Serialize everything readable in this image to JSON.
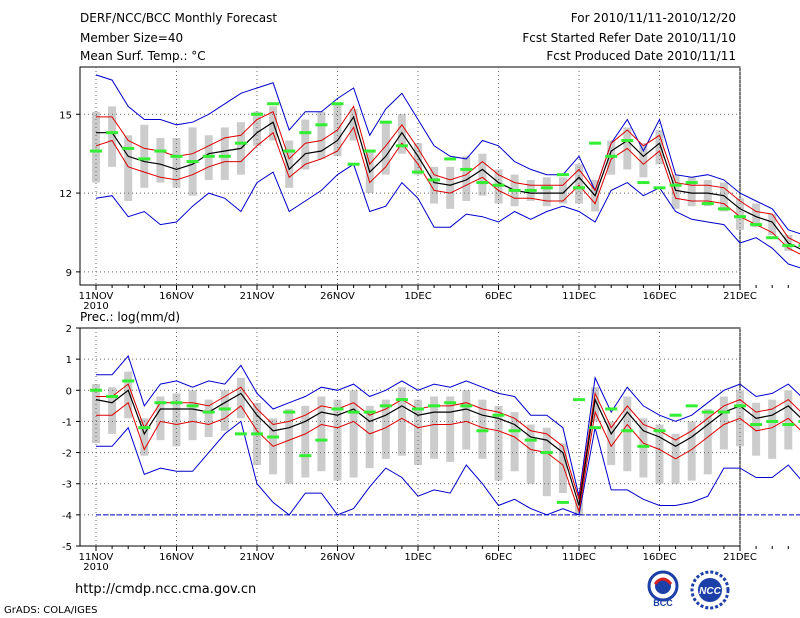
{
  "header": {
    "title": "DERF/NCC/BCC Monthly Forecast",
    "member_size": "Member Size=40",
    "variable": "Mean Surf. Temp.: °C",
    "for_period": "For 2010/11/11-2010/12/20",
    "started": "Fcst Started Refer Date 2010/11/10",
    "produced": "Fcst Produced Date 2010/11/11"
  },
  "footer": {
    "url": "http://cmdp.ncc.cma.gov.cn",
    "credit": "GrADS: COLA/IGES",
    "logo_bcc": "BCC",
    "logo_ncc": "NCC"
  },
  "colors": {
    "envelope": "#0000cc",
    "spread": "#dd0000",
    "mean": "#000000",
    "box": "#cccccc",
    "median": "#33ee33",
    "grid": "#666666"
  },
  "chart_data": [
    {
      "type": "line",
      "title": "Mean Surf. Temp.: °C",
      "x_labels": [
        "11NOV",
        "16NOV",
        "21NOV",
        "26NOV",
        "1DEC",
        "6DEC",
        "11DEC",
        "16DEC",
        "21DEC"
      ],
      "x_sublabel": "2010",
      "ylim": [
        8.5,
        16.8
      ],
      "yticks": [
        9,
        12,
        15
      ],
      "series": [
        {
          "name": "max",
          "values": [
            16.5,
            16.3,
            15.3,
            14.8,
            14.8,
            14.6,
            14.7,
            15.0,
            15.4,
            15.8,
            16.0,
            16.2,
            14.4,
            15.1,
            15.1,
            15.6,
            16.0,
            14.2,
            15.2,
            15.8,
            14.8,
            13.8,
            13.4,
            13.3,
            14.0,
            13.8,
            13.2,
            12.9,
            12.7,
            12.7,
            13.4,
            12.1,
            13.9,
            14.8,
            13.6,
            14.8,
            12.7,
            12.6,
            12.7,
            12.5,
            12.0,
            11.7,
            11.4,
            10.6,
            10.4
          ]
        },
        {
          "name": "upper",
          "values": [
            14.9,
            14.9,
            14.0,
            13.7,
            13.6,
            13.4,
            13.5,
            13.8,
            14.1,
            14.2,
            14.8,
            15.1,
            13.3,
            13.9,
            14.0,
            14.4,
            15.3,
            13.1,
            13.8,
            14.6,
            13.7,
            12.7,
            12.5,
            12.7,
            13.2,
            12.7,
            12.4,
            12.3,
            12.3,
            12.3,
            12.9,
            12.1,
            13.9,
            14.4,
            13.8,
            14.2,
            12.4,
            12.3,
            12.3,
            12.2,
            11.7,
            11.3,
            11.2,
            10.3,
            10.0
          ]
        },
        {
          "name": "mean",
          "values": [
            14.3,
            14.3,
            13.4,
            13.2,
            13.1,
            12.9,
            13.1,
            13.5,
            13.6,
            13.7,
            14.3,
            14.7,
            12.9,
            13.5,
            13.6,
            14.0,
            14.9,
            12.8,
            13.4,
            14.3,
            13.4,
            12.4,
            12.3,
            12.5,
            12.9,
            12.4,
            12.1,
            12.0,
            12.0,
            12.0,
            12.6,
            11.9,
            13.6,
            14.0,
            13.4,
            13.9,
            12.1,
            12.0,
            12.0,
            11.9,
            11.4,
            11.1,
            10.9,
            10.1,
            9.8
          ]
        },
        {
          "name": "lower",
          "values": [
            13.8,
            14.0,
            13.0,
            12.8,
            12.6,
            12.5,
            12.7,
            13.0,
            13.2,
            13.2,
            13.8,
            14.3,
            12.6,
            13.1,
            13.3,
            13.6,
            14.5,
            12.4,
            13.0,
            13.9,
            13.1,
            12.1,
            12.0,
            12.3,
            12.6,
            12.1,
            11.8,
            11.8,
            11.7,
            11.7,
            12.3,
            11.6,
            13.3,
            13.7,
            13.1,
            13.6,
            11.8,
            11.7,
            11.7,
            11.6,
            11.1,
            10.8,
            10.5,
            9.9,
            9.6
          ]
        },
        {
          "name": "min",
          "values": [
            11.8,
            11.9,
            11.1,
            11.3,
            10.8,
            10.9,
            11.5,
            12.0,
            11.8,
            11.3,
            12.4,
            12.8,
            11.3,
            11.7,
            12.1,
            12.7,
            13.1,
            11.3,
            11.5,
            12.4,
            11.8,
            10.7,
            10.7,
            11.2,
            11.1,
            10.9,
            11.3,
            11.0,
            11.3,
            11.5,
            11.3,
            10.9,
            12.1,
            12.4,
            11.9,
            12.2,
            11.3,
            11.0,
            10.9,
            10.8,
            10.1,
            10.3,
            9.9,
            9.3,
            9.1
          ]
        },
        {
          "name": "median",
          "values": [
            13.6,
            14.3,
            13.7,
            13.3,
            13.6,
            13.4,
            13.2,
            13.4,
            13.4,
            13.9,
            15.0,
            15.4,
            13.6,
            14.3,
            14.6,
            15.4,
            13.1,
            13.6,
            14.7,
            13.8,
            12.8,
            12.5,
            13.3,
            12.9,
            12.4,
            12.3,
            12.1,
            12.1,
            12.2,
            12.7,
            12.2,
            13.9,
            13.4,
            14.0,
            12.4,
            12.2,
            12.3,
            12.4,
            11.6,
            11.4,
            11.1,
            10.8,
            10.3,
            10.0,
            10.0
          ]
        },
        {
          "name": "box_high",
          "values": [
            15.1,
            15.3,
            14.2,
            14.6,
            14.1,
            14.1,
            14.5,
            14.2,
            14.5,
            14.7,
            15.1,
            15.3,
            14.0,
            14.8,
            15.1,
            15.4,
            15.2,
            13.6,
            14.7,
            15.0,
            13.9,
            13.0,
            13.0,
            13.4,
            13.5,
            12.9,
            12.7,
            12.5,
            12.6,
            12.6,
            13.1,
            12.5,
            14.0,
            14.5,
            13.9,
            14.4,
            12.7,
            12.6,
            12.5,
            12.4,
            11.8,
            11.6,
            11.2,
            10.4,
            10.1
          ]
        },
        {
          "name": "box_low",
          "values": [
            12.4,
            13.0,
            11.7,
            12.2,
            12.4,
            12.2,
            11.9,
            12.5,
            12.5,
            12.7,
            13.8,
            14.0,
            12.2,
            12.9,
            13.3,
            13.4,
            14.0,
            12.0,
            12.7,
            13.5,
            12.7,
            11.6,
            11.4,
            11.7,
            11.9,
            11.6,
            11.5,
            11.7,
            11.5,
            11.6,
            11.6,
            11.3,
            12.7,
            12.9,
            12.6,
            13.1,
            11.4,
            11.5,
            11.5,
            11.3,
            10.6,
            10.7,
            10.4,
            9.8,
            9.4
          ]
        }
      ]
    },
    {
      "type": "line",
      "title": "Prec.: log(mm/d)",
      "x_labels": [
        "11NOV",
        "16NOV",
        "21NOV",
        "26NOV",
        "1DEC",
        "6DEC",
        "11DEC",
        "16DEC",
        "21DEC"
      ],
      "x_sublabel": "2010",
      "ylim": [
        -5,
        2
      ],
      "yticks": [
        -5,
        -4,
        -3,
        -2,
        -1,
        0,
        1,
        2
      ],
      "series": [
        {
          "name": "max",
          "values": [
            0.5,
            0.5,
            1.1,
            -0.5,
            0.2,
            0.3,
            0.1,
            0.3,
            0.2,
            0.8,
            -0.1,
            -0.6,
            -0.4,
            -0.2,
            0.1,
            0.0,
            0.2,
            -0.2,
            0.0,
            0.3,
            0.0,
            0.2,
            0.1,
            0.3,
            0.1,
            -0.1,
            -0.2,
            -0.8,
            -0.8,
            -1.2,
            -3.4,
            0.4,
            -0.7,
            0.1,
            -0.5,
            -0.8,
            -1.0,
            -0.8,
            -0.4,
            0.0,
            0.2,
            -0.2,
            -0.1,
            0.2,
            -0.3
          ]
        },
        {
          "name": "upper",
          "values": [
            -0.2,
            -0.2,
            0.2,
            -1.2,
            -0.4,
            -0.4,
            -0.4,
            -0.5,
            -0.2,
            0.1,
            -0.6,
            -1.1,
            -1.0,
            -0.8,
            -0.5,
            -0.6,
            -0.4,
            -0.8,
            -0.6,
            -0.3,
            -0.6,
            -0.5,
            -0.5,
            -0.4,
            -0.6,
            -0.7,
            -0.9,
            -1.3,
            -1.4,
            -1.8,
            -3.5,
            -0.1,
            -1.2,
            -0.5,
            -1.1,
            -1.3,
            -1.6,
            -1.3,
            -0.9,
            -0.5,
            -0.3,
            -0.7,
            -0.6,
            -0.3,
            -0.8
          ]
        },
        {
          "name": "mean",
          "values": [
            -0.3,
            -0.4,
            0.0,
            -1.4,
            -0.6,
            -0.6,
            -0.6,
            -0.7,
            -0.4,
            -0.1,
            -0.8,
            -1.3,
            -1.2,
            -1.0,
            -0.7,
            -0.8,
            -0.6,
            -1.0,
            -0.8,
            -0.5,
            -0.8,
            -0.7,
            -0.7,
            -0.6,
            -0.8,
            -0.9,
            -1.1,
            -1.5,
            -1.6,
            -2.0,
            -3.7,
            -0.3,
            -1.4,
            -0.7,
            -1.3,
            -1.5,
            -1.8,
            -1.5,
            -1.1,
            -0.7,
            -0.5,
            -0.9,
            -0.8,
            -0.5,
            -1.0
          ]
        },
        {
          "name": "lower",
          "values": [
            -0.8,
            -0.8,
            -0.4,
            -1.9,
            -1.0,
            -1.1,
            -1.0,
            -1.1,
            -0.9,
            -0.5,
            -1.3,
            -1.8,
            -1.6,
            -1.4,
            -1.1,
            -1.2,
            -1.0,
            -1.4,
            -1.2,
            -0.9,
            -1.2,
            -1.1,
            -1.1,
            -1.0,
            -1.2,
            -1.3,
            -1.5,
            -1.9,
            -2.0,
            -2.4,
            -3.9,
            -0.7,
            -1.8,
            -1.1,
            -1.7,
            -1.9,
            -2.2,
            -1.9,
            -1.5,
            -1.1,
            -0.9,
            -1.3,
            -1.2,
            -0.9,
            -1.4
          ]
        },
        {
          "name": "min",
          "values": [
            -1.8,
            -1.8,
            -1.2,
            -2.7,
            -2.5,
            -2.6,
            -2.6,
            -2.0,
            -1.4,
            -1.0,
            -3.0,
            -3.6,
            -4.0,
            -3.3,
            -3.3,
            -4.0,
            -3.8,
            -3.1,
            -2.5,
            -2.8,
            -3.4,
            -3.2,
            -3.3,
            -2.4,
            -3.0,
            -3.7,
            -3.5,
            -3.8,
            -4.0,
            -3.8,
            -4.0,
            -1.2,
            -3.2,
            -3.2,
            -3.5,
            -3.7,
            -3.7,
            -3.6,
            -3.4,
            -2.5,
            -2.5,
            -2.8,
            -2.8,
            -2.4,
            -3.0
          ]
        },
        {
          "name": "median",
          "values": [
            0.0,
            -0.2,
            0.3,
            -1.2,
            -0.4,
            -0.4,
            -0.5,
            -0.7,
            -0.6,
            -1.4,
            -1.4,
            -1.5,
            -0.7,
            -2.1,
            -1.6,
            -0.6,
            -0.7,
            -0.7,
            -0.5,
            -0.3,
            -0.6,
            -0.5,
            -0.4,
            -0.5,
            -1.3,
            -0.8,
            -1.3,
            -1.6,
            -2.0,
            -3.6,
            -0.3,
            -1.2,
            -0.6,
            -1.3,
            -1.8,
            -1.3,
            -0.8,
            -0.5,
            -0.7,
            -0.7,
            -0.5,
            -1.1,
            -1.0,
            -1.1,
            -1.0
          ]
        },
        {
          "name": "box_high",
          "values": [
            0.2,
            0.1,
            0.6,
            -0.9,
            -0.2,
            -0.1,
            0.0,
            -0.3,
            0.0,
            0.4,
            -0.4,
            -0.9,
            -0.6,
            -0.5,
            -0.2,
            -0.3,
            0.0,
            -0.5,
            -0.3,
            0.1,
            -0.3,
            -0.2,
            -0.2,
            0.0,
            -0.3,
            -0.5,
            -0.7,
            -1.1,
            -1.2,
            -1.7,
            -3.5,
            0.1,
            -1.0,
            -0.2,
            -0.9,
            -1.1,
            -1.4,
            -1.0,
            -0.6,
            -0.2,
            0.0,
            -0.4,
            -0.3,
            0.0,
            -0.5
          ]
        },
        {
          "name": "box_low",
          "values": [
            -1.7,
            -1.4,
            -0.9,
            -2.1,
            -1.6,
            -1.8,
            -1.6,
            -1.5,
            -1.3,
            -0.9,
            -2.4,
            -2.7,
            -3.0,
            -2.8,
            -2.6,
            -2.9,
            -2.8,
            -2.5,
            -2.2,
            -2.1,
            -2.4,
            -2.2,
            -2.3,
            -1.9,
            -2.2,
            -2.9,
            -2.6,
            -3.0,
            -3.4,
            -3.3,
            -4.0,
            -1.0,
            -2.4,
            -2.6,
            -2.8,
            -3.0,
            -3.0,
            -2.9,
            -2.7,
            -1.9,
            -1.8,
            -2.1,
            -2.2,
            -1.9,
            -2.3
          ]
        },
        {
          "name": "floor",
          "values": [
            -4,
            -4,
            -4,
            -4,
            -4,
            -4,
            -4,
            -4,
            -4,
            -4,
            -4,
            -4,
            -4,
            -4,
            -4,
            -4,
            -4,
            -4,
            -4,
            -4,
            -4,
            -4,
            -4,
            -4,
            -4,
            -4,
            -4,
            -4,
            -4,
            -4,
            -4,
            -4,
            -4,
            -4,
            -4,
            -4,
            -4,
            -4,
            -4,
            -4,
            -4,
            -4,
            -4,
            -4,
            -4
          ]
        }
      ]
    }
  ]
}
